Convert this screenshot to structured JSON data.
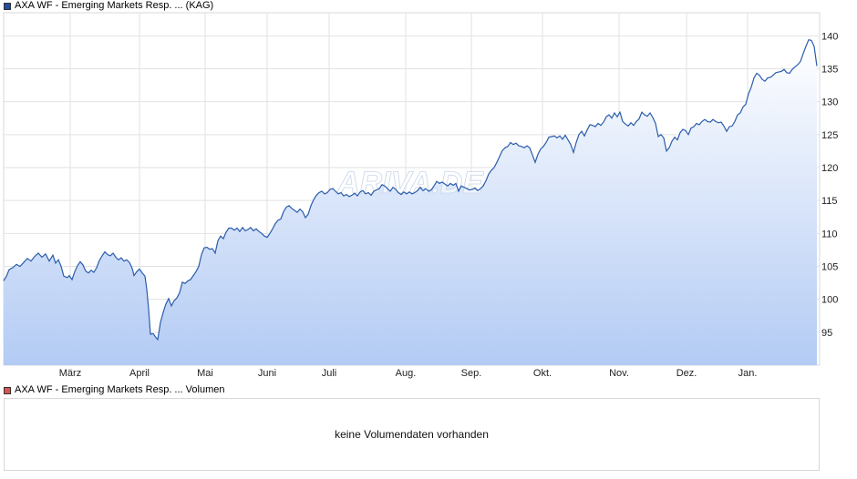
{
  "legend": {
    "price_label": "AXA WF - Emerging Markets Resp. ... (KAG)",
    "volume_label": "AXA WF - Emerging Markets Resp. ... Volumen",
    "price_color": "#1f4fa0",
    "volume_color": "#d9534f"
  },
  "watermark": "ARIVA.DE",
  "volume_panel": {
    "message": "keine Volumendaten vorhanden"
  },
  "chart_data": {
    "type": "area",
    "title": "",
    "xlabel": "",
    "ylabel": "",
    "y_axis_position": "right",
    "grid": true,
    "ylim": [
      90,
      143.5
    ],
    "yticks": [
      95,
      100,
      105,
      110,
      115,
      120,
      125,
      130,
      135,
      140
    ],
    "xticks": [
      {
        "label": "März",
        "t": 73
      },
      {
        "label": "April",
        "t": 149
      },
      {
        "label": "Mai",
        "t": 221
      },
      {
        "label": "Juni",
        "t": 289
      },
      {
        "label": "Juli",
        "t": 357
      },
      {
        "label": "Aug.",
        "t": 441
      },
      {
        "label": "Sep.",
        "t": 513
      },
      {
        "label": "Okt.",
        "t": 591
      },
      {
        "label": "Nov.",
        "t": 675
      },
      {
        "label": "Dez.",
        "t": 749
      },
      {
        "label": "Jan.",
        "t": 816
      }
    ],
    "xlim": [
      0,
      893
    ],
    "series": [
      {
        "color": "#2a5caa",
        "points": [
          [
            0,
            102.8
          ],
          [
            3,
            103.5
          ],
          [
            6,
            104.5
          ],
          [
            10,
            104.8
          ],
          [
            14,
            105.3
          ],
          [
            18,
            105.0
          ],
          [
            22,
            105.6
          ],
          [
            26,
            106.2
          ],
          [
            30,
            105.8
          ],
          [
            34,
            106.5
          ],
          [
            38,
            107.0
          ],
          [
            42,
            106.4
          ],
          [
            46,
            106.9
          ],
          [
            50,
            105.8
          ],
          [
            54,
            106.7
          ],
          [
            57,
            105.5
          ],
          [
            60,
            106.0
          ],
          [
            63,
            105.0
          ],
          [
            66,
            103.5
          ],
          [
            70,
            103.3
          ],
          [
            72,
            103.6
          ],
          [
            75,
            103.0
          ],
          [
            78,
            104.2
          ],
          [
            81,
            105.1
          ],
          [
            84,
            105.7
          ],
          [
            87,
            105.2
          ],
          [
            90,
            104.3
          ],
          [
            93,
            104.0
          ],
          [
            96,
            104.4
          ],
          [
            99,
            104.1
          ],
          [
            102,
            104.8
          ],
          [
            105,
            105.9
          ],
          [
            108,
            106.6
          ],
          [
            111,
            107.2
          ],
          [
            114,
            106.8
          ],
          [
            117,
            106.6
          ],
          [
            120,
            107.0
          ],
          [
            123,
            106.4
          ],
          [
            126,
            106.0
          ],
          [
            129,
            106.3
          ],
          [
            132,
            105.8
          ],
          [
            135,
            106.0
          ],
          [
            138,
            105.6
          ],
          [
            141,
            104.7
          ],
          [
            143,
            103.6
          ],
          [
            146,
            104.2
          ],
          [
            149,
            104.6
          ],
          [
            152,
            104.0
          ],
          [
            155,
            103.5
          ],
          [
            157,
            101.5
          ],
          [
            159,
            98.5
          ],
          [
            161,
            94.7
          ],
          [
            164,
            94.8
          ],
          [
            167,
            94.2
          ],
          [
            169,
            93.9
          ],
          [
            172,
            96.5
          ],
          [
            175,
            98.0
          ],
          [
            178,
            99.3
          ],
          [
            181,
            100.1
          ],
          [
            184,
            99.0
          ],
          [
            187,
            99.8
          ],
          [
            190,
            100.2
          ],
          [
            193,
            101.0
          ],
          [
            196,
            102.6
          ],
          [
            199,
            102.4
          ],
          [
            202,
            102.8
          ],
          [
            205,
            103.0
          ],
          [
            208,
            103.6
          ],
          [
            211,
            104.2
          ],
          [
            214,
            105.0
          ],
          [
            217,
            106.8
          ],
          [
            220,
            107.8
          ],
          [
            223,
            107.9
          ],
          [
            226,
            107.6
          ],
          [
            229,
            107.7
          ],
          [
            232,
            107.0
          ],
          [
            235,
            108.9
          ],
          [
            238,
            109.6
          ],
          [
            241,
            109.2
          ],
          [
            244,
            110.2
          ],
          [
            247,
            110.8
          ],
          [
            250,
            110.8
          ],
          [
            253,
            110.5
          ],
          [
            256,
            110.8
          ],
          [
            259,
            110.3
          ],
          [
            262,
            110.9
          ],
          [
            265,
            110.4
          ],
          [
            268,
            110.6
          ],
          [
            271,
            110.9
          ],
          [
            274,
            110.4
          ],
          [
            277,
            110.7
          ],
          [
            280,
            110.3
          ],
          [
            283,
            110.0
          ],
          [
            286,
            109.6
          ],
          [
            289,
            109.4
          ],
          [
            292,
            110.0
          ],
          [
            295,
            110.7
          ],
          [
            298,
            111.5
          ],
          [
            301,
            112.0
          ],
          [
            304,
            112.2
          ],
          [
            307,
            113.3
          ],
          [
            310,
            114.0
          ],
          [
            313,
            114.2
          ],
          [
            316,
            113.8
          ],
          [
            319,
            113.5
          ],
          [
            322,
            113.2
          ],
          [
            325,
            113.7
          ],
          [
            328,
            113.3
          ],
          [
            331,
            112.4
          ],
          [
            334,
            112.9
          ],
          [
            337,
            114.2
          ],
          [
            340,
            115.1
          ],
          [
            343,
            115.8
          ],
          [
            346,
            116.2
          ],
          [
            349,
            116.4
          ],
          [
            352,
            116.0
          ],
          [
            355,
            116.2
          ],
          [
            358,
            116.7
          ],
          [
            361,
            116.8
          ],
          [
            364,
            116.4
          ],
          [
            367,
            116.0
          ],
          [
            370,
            116.2
          ],
          [
            373,
            115.7
          ],
          [
            376,
            115.9
          ],
          [
            379,
            115.6
          ],
          [
            382,
            115.8
          ],
          [
            385,
            116.1
          ],
          [
            388,
            115.7
          ],
          [
            391,
            116.3
          ],
          [
            394,
            116.5
          ],
          [
            397,
            116.0
          ],
          [
            400,
            116.2
          ],
          [
            403,
            115.8
          ],
          [
            406,
            116.4
          ],
          [
            409,
            116.6
          ],
          [
            412,
            116.8
          ],
          [
            415,
            117.4
          ],
          [
            418,
            117.2
          ],
          [
            421,
            116.8
          ],
          [
            424,
            116.4
          ],
          [
            427,
            117.0
          ],
          [
            430,
            116.7
          ],
          [
            433,
            116.2
          ],
          [
            436,
            115.9
          ],
          [
            439,
            116.3
          ],
          [
            442,
            116.0
          ],
          [
            445,
            116.3
          ],
          [
            448,
            116.0
          ],
          [
            451,
            116.2
          ],
          [
            454,
            116.5
          ],
          [
            457,
            117.0
          ],
          [
            460,
            116.5
          ],
          [
            463,
            116.8
          ],
          [
            466,
            116.4
          ],
          [
            469,
            116.6
          ],
          [
            472,
            117.2
          ],
          [
            475,
            117.9
          ],
          [
            478,
            117.6
          ],
          [
            481,
            117.8
          ],
          [
            484,
            117.5
          ],
          [
            487,
            117.2
          ],
          [
            490,
            117.6
          ],
          [
            493,
            117.3
          ],
          [
            496,
            117.6
          ],
          [
            499,
            116.4
          ],
          [
            502,
            117.2
          ],
          [
            505,
            117.0
          ],
          [
            508,
            116.8
          ],
          [
            511,
            116.6
          ],
          [
            514,
            116.7
          ],
          [
            517,
            116.9
          ],
          [
            520,
            116.5
          ],
          [
            523,
            116.8
          ],
          [
            526,
            117.2
          ],
          [
            529,
            118.0
          ],
          [
            532,
            119.0
          ],
          [
            535,
            119.6
          ],
          [
            538,
            120.0
          ],
          [
            541,
            120.8
          ],
          [
            544,
            121.7
          ],
          [
            547,
            122.6
          ],
          [
            550,
            123.0
          ],
          [
            553,
            123.2
          ],
          [
            556,
            123.8
          ],
          [
            559,
            123.5
          ],
          [
            562,
            123.7
          ],
          [
            565,
            123.3
          ],
          [
            568,
            123.2
          ],
          [
            571,
            123.0
          ],
          [
            574,
            123.3
          ],
          [
            577,
            123.0
          ],
          [
            580,
            121.9
          ],
          [
            583,
            120.8
          ],
          [
            586,
            122.0
          ],
          [
            589,
            122.8
          ],
          [
            592,
            123.2
          ],
          [
            595,
            123.8
          ],
          [
            598,
            124.6
          ],
          [
            601,
            124.7
          ],
          [
            604,
            124.8
          ],
          [
            607,
            124.5
          ],
          [
            610,
            124.8
          ],
          [
            613,
            124.3
          ],
          [
            616,
            124.9
          ],
          [
            619,
            124.2
          ],
          [
            622,
            123.5
          ],
          [
            625,
            122.3
          ],
          [
            628,
            123.8
          ],
          [
            631,
            125.0
          ],
          [
            634,
            125.5
          ],
          [
            637,
            124.8
          ],
          [
            640,
            125.7
          ],
          [
            643,
            126.5
          ],
          [
            646,
            126.4
          ],
          [
            649,
            126.2
          ],
          [
            652,
            126.7
          ],
          [
            655,
            126.4
          ],
          [
            658,
            126.9
          ],
          [
            661,
            127.7
          ],
          [
            664,
            128.0
          ],
          [
            667,
            127.5
          ],
          [
            670,
            128.3
          ],
          [
            673,
            127.7
          ],
          [
            676,
            128.4
          ],
          [
            679,
            127.0
          ],
          [
            682,
            126.6
          ],
          [
            685,
            126.3
          ],
          [
            688,
            126.8
          ],
          [
            691,
            126.4
          ],
          [
            694,
            127.0
          ],
          [
            697,
            127.4
          ],
          [
            700,
            128.4
          ],
          [
            703,
            128.0
          ],
          [
            706,
            127.8
          ],
          [
            709,
            128.3
          ],
          [
            712,
            127.6
          ],
          [
            715,
            126.7
          ],
          [
            718,
            124.7
          ],
          [
            721,
            125.0
          ],
          [
            724,
            124.5
          ],
          [
            727,
            122.5
          ],
          [
            730,
            123.0
          ],
          [
            733,
            124.0
          ],
          [
            736,
            124.6
          ],
          [
            739,
            124.2
          ],
          [
            742,
            125.3
          ],
          [
            745,
            125.8
          ],
          [
            748,
            125.6
          ],
          [
            751,
            125.0
          ],
          [
            754,
            126.0
          ],
          [
            757,
            126.2
          ],
          [
            760,
            126.7
          ],
          [
            763,
            126.5
          ],
          [
            766,
            127.0
          ],
          [
            769,
            127.3
          ],
          [
            772,
            127.0
          ],
          [
            775,
            126.9
          ],
          [
            778,
            127.3
          ],
          [
            781,
            127.0
          ],
          [
            784,
            126.8
          ],
          [
            787,
            126.9
          ],
          [
            790,
            126.3
          ],
          [
            793,
            125.5
          ],
          [
            796,
            126.2
          ],
          [
            799,
            126.3
          ],
          [
            802,
            127.0
          ],
          [
            805,
            128.0
          ],
          [
            808,
            128.3
          ],
          [
            811,
            129.2
          ],
          [
            814,
            129.6
          ],
          [
            817,
            131.2
          ],
          [
            820,
            132.2
          ],
          [
            823,
            133.6
          ],
          [
            826,
            134.3
          ],
          [
            829,
            134.0
          ],
          [
            832,
            133.4
          ],
          [
            835,
            133.1
          ],
          [
            838,
            133.6
          ],
          [
            841,
            133.7
          ],
          [
            844,
            134.0
          ],
          [
            847,
            134.4
          ],
          [
            850,
            134.5
          ],
          [
            853,
            134.6
          ],
          [
            856,
            134.9
          ],
          [
            859,
            134.4
          ],
          [
            862,
            134.3
          ],
          [
            865,
            134.9
          ],
          [
            868,
            135.3
          ],
          [
            871,
            135.6
          ],
          [
            874,
            136.1
          ],
          [
            877,
            137.3
          ],
          [
            880,
            138.4
          ],
          [
            883,
            139.4
          ],
          [
            886,
            139.3
          ],
          [
            889,
            138.4
          ],
          [
            892,
            135.4
          ]
        ]
      }
    ]
  }
}
